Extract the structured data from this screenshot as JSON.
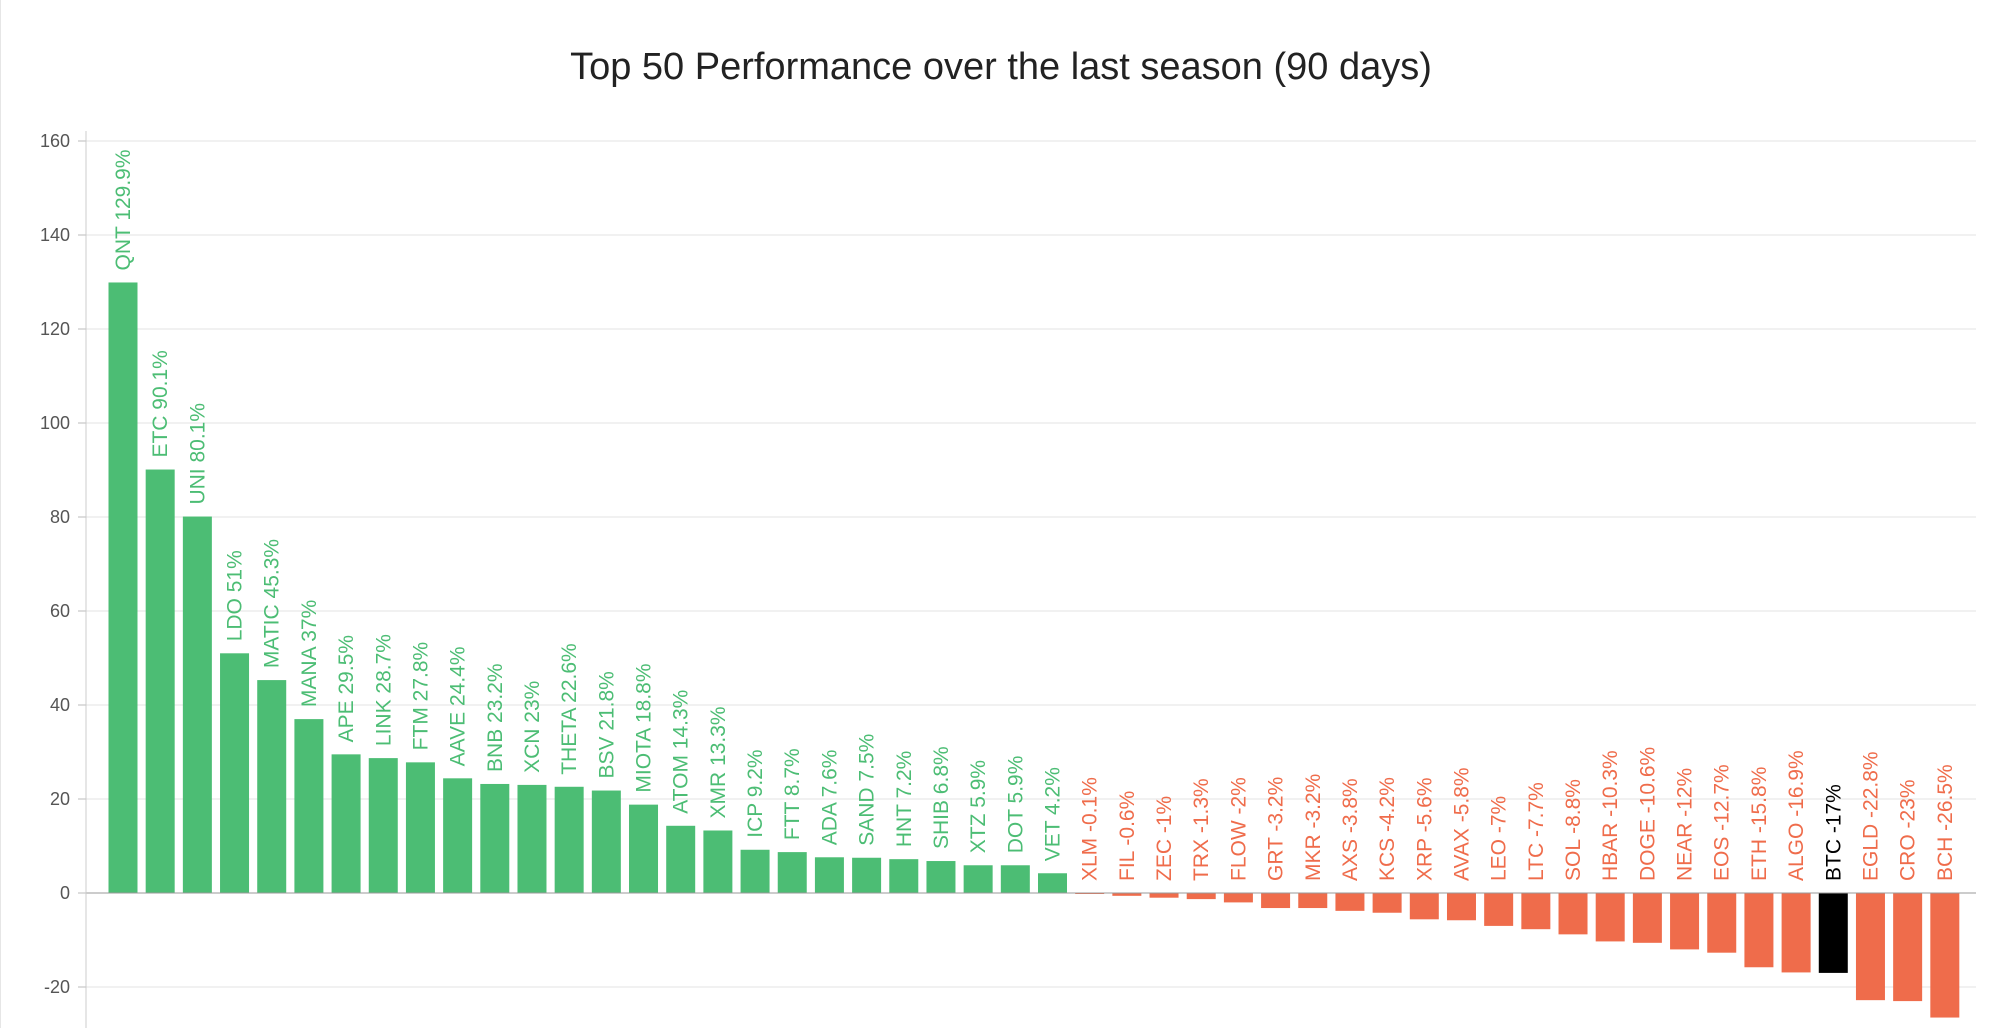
{
  "chart_data": {
    "type": "bar",
    "title": "Top 50 Performance over the last season (90 days)",
    "xlabel": "",
    "ylabel": "",
    "ylim": [
      -29,
      160
    ],
    "yticks": [
      160,
      140,
      120,
      100,
      80,
      60,
      40,
      20,
      0,
      -20
    ],
    "grid": true,
    "colors": {
      "positive": "#4cbd74",
      "negative": "#ef6c4b",
      "highlight": "#000000",
      "grid": "#e3e3e3"
    },
    "highlight": "BTC",
    "bars": [
      {
        "symbol": "QNT",
        "value": 129.9,
        "label": "QNT 129.9%"
      },
      {
        "symbol": "ETC",
        "value": 90.1,
        "label": "ETC 90.1%"
      },
      {
        "symbol": "UNI",
        "value": 80.1,
        "label": "UNI 80.1%"
      },
      {
        "symbol": "LDO",
        "value": 51,
        "label": "LDO 51%"
      },
      {
        "symbol": "MATIC",
        "value": 45.3,
        "label": "MATIC 45.3%"
      },
      {
        "symbol": "MANA",
        "value": 37,
        "label": "MANA 37%"
      },
      {
        "symbol": "APE",
        "value": 29.5,
        "label": "APE 29.5%"
      },
      {
        "symbol": "LINK",
        "value": 28.7,
        "label": "LINK 28.7%"
      },
      {
        "symbol": "FTM",
        "value": 27.8,
        "label": "FTM 27.8%"
      },
      {
        "symbol": "AAVE",
        "value": 24.4,
        "label": "AAVE 24.4%"
      },
      {
        "symbol": "BNB",
        "value": 23.2,
        "label": "BNB 23.2%"
      },
      {
        "symbol": "XCN",
        "value": 23,
        "label": "XCN 23%"
      },
      {
        "symbol": "THETA",
        "value": 22.6,
        "label": "THETA 22.6%"
      },
      {
        "symbol": "BSV",
        "value": 21.8,
        "label": "BSV 21.8%"
      },
      {
        "symbol": "MIOTA",
        "value": 18.8,
        "label": "MIOTA 18.8%"
      },
      {
        "symbol": "ATOM",
        "value": 14.3,
        "label": "ATOM 14.3%"
      },
      {
        "symbol": "XMR",
        "value": 13.3,
        "label": "XMR 13.3%"
      },
      {
        "symbol": "ICP",
        "value": 9.2,
        "label": "ICP 9.2%"
      },
      {
        "symbol": "FTT",
        "value": 8.7,
        "label": "FTT 8.7%"
      },
      {
        "symbol": "ADA",
        "value": 7.6,
        "label": "ADA 7.6%"
      },
      {
        "symbol": "SAND",
        "value": 7.5,
        "label": "SAND 7.5%"
      },
      {
        "symbol": "HNT",
        "value": 7.2,
        "label": "HNT 7.2%"
      },
      {
        "symbol": "SHIB",
        "value": 6.8,
        "label": "SHIB 6.8%"
      },
      {
        "symbol": "XTZ",
        "value": 5.9,
        "label": "XTZ 5.9%"
      },
      {
        "symbol": "DOT",
        "value": 5.9,
        "label": "DOT 5.9%"
      },
      {
        "symbol": "VET",
        "value": 4.2,
        "label": "VET 4.2%"
      },
      {
        "symbol": "XLM",
        "value": -0.1,
        "label": "XLM -0.1%"
      },
      {
        "symbol": "FIL",
        "value": -0.6,
        "label": "FIL -0.6%"
      },
      {
        "symbol": "ZEC",
        "value": -1,
        "label": "ZEC -1%"
      },
      {
        "symbol": "TRX",
        "value": -1.3,
        "label": "TRX -1.3%"
      },
      {
        "symbol": "FLOW",
        "value": -2,
        "label": "FLOW -2%"
      },
      {
        "symbol": "GRT",
        "value": -3.2,
        "label": "GRT -3.2%"
      },
      {
        "symbol": "MKR",
        "value": -3.2,
        "label": "MKR -3.2%"
      },
      {
        "symbol": "AXS",
        "value": -3.8,
        "label": "AXS -3.8%"
      },
      {
        "symbol": "KCS",
        "value": -4.2,
        "label": "KCS -4.2%"
      },
      {
        "symbol": "XRP",
        "value": -5.6,
        "label": "XRP -5.6%"
      },
      {
        "symbol": "AVAX",
        "value": -5.8,
        "label": "AVAX -5.8%"
      },
      {
        "symbol": "LEO",
        "value": -7,
        "label": "LEO -7%"
      },
      {
        "symbol": "LTC",
        "value": -7.7,
        "label": "LTC -7.7%"
      },
      {
        "symbol": "SOL",
        "value": -8.8,
        "label": "SOL -8.8%"
      },
      {
        "symbol": "HBAR",
        "value": -10.3,
        "label": "HBAR -10.3%"
      },
      {
        "symbol": "DOGE",
        "value": -10.6,
        "label": "DOGE -10.6%"
      },
      {
        "symbol": "NEAR",
        "value": -12,
        "label": "NEAR -12%"
      },
      {
        "symbol": "EOS",
        "value": -12.7,
        "label": "EOS -12.7%"
      },
      {
        "symbol": "ETH",
        "value": -15.8,
        "label": "ETH -15.8%"
      },
      {
        "symbol": "ALGO",
        "value": -16.9,
        "label": "ALGO -16.9%"
      },
      {
        "symbol": "BTC",
        "value": -17,
        "label": "BTC -17%"
      },
      {
        "symbol": "EGLD",
        "value": -22.8,
        "label": "EGLD -22.8%"
      },
      {
        "symbol": "CRO",
        "value": -23,
        "label": "CRO -23%"
      },
      {
        "symbol": "BCH",
        "value": -26.5,
        "label": "BCH -26.5%"
      }
    ]
  }
}
